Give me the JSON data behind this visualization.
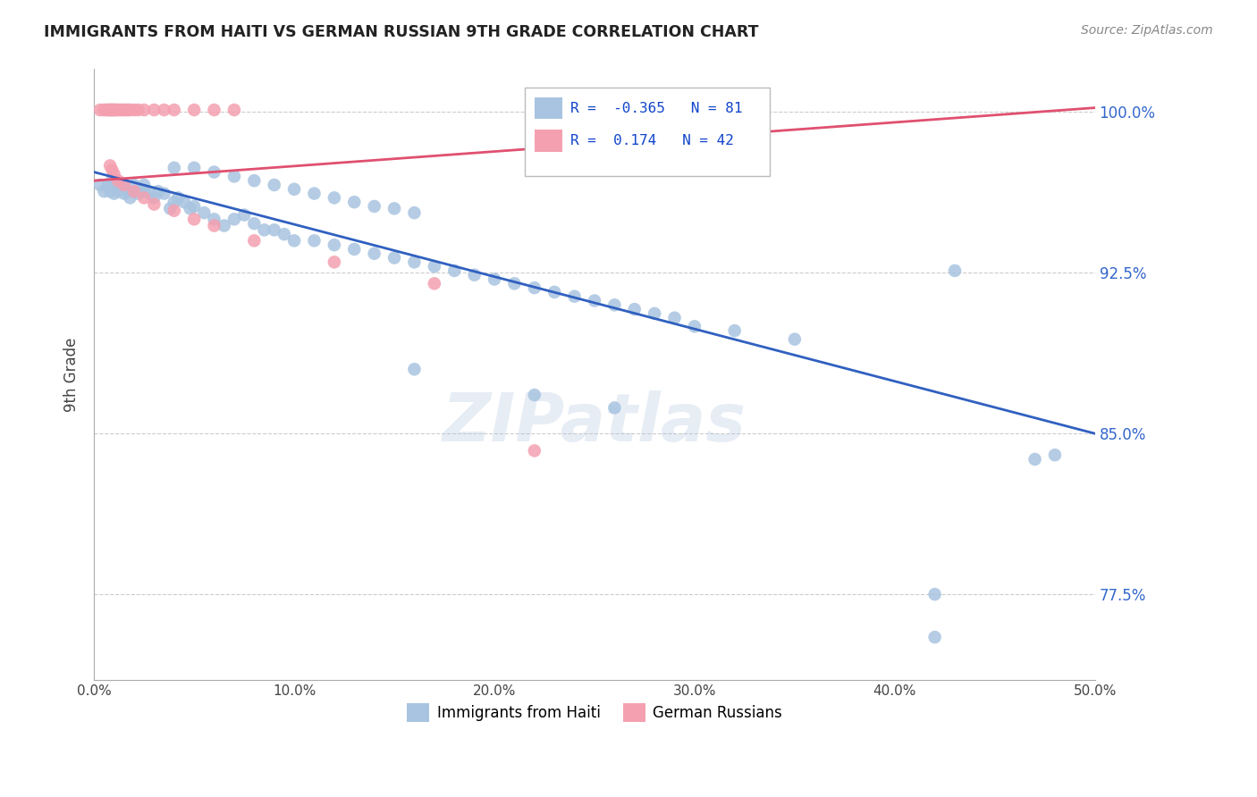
{
  "title": "IMMIGRANTS FROM HAITI VS GERMAN RUSSIAN 9TH GRADE CORRELATION CHART",
  "source": "Source: ZipAtlas.com",
  "xlabel_blue": "Immigrants from Haiti",
  "xlabel_pink": "German Russians",
  "ylabel": "9th Grade",
  "R_blue": -0.365,
  "N_blue": 81,
  "R_pink": 0.174,
  "N_pink": 42,
  "xlim": [
    0.0,
    0.5
  ],
  "ylim": [
    0.735,
    1.02
  ],
  "yticks": [
    0.775,
    0.85,
    0.925,
    1.0
  ],
  "ytick_labels": [
    "77.5%",
    "85.0%",
    "92.5%",
    "100.0%"
  ],
  "xticks": [
    0.0,
    0.1,
    0.2,
    0.3,
    0.4,
    0.5
  ],
  "xtick_labels": [
    "0.0%",
    "10.0%",
    "20.0%",
    "30.0%",
    "40.0%",
    "50.0%"
  ],
  "color_blue": "#a8c4e0",
  "color_pink": "#f4a0b0",
  "line_blue": "#3060c0",
  "line_pink": "#e05070",
  "watermark": "ZIPatlas",
  "blue_line_x": [
    0.0,
    0.5
  ],
  "blue_line_y": [
    0.972,
    0.85
  ],
  "pink_line_x": [
    0.0,
    0.5
  ],
  "pink_line_y": [
    0.968,
    1.002
  ],
  "blue_points_x": [
    0.003,
    0.005,
    0.007,
    0.008,
    0.009,
    0.01,
    0.01,
    0.012,
    0.013,
    0.015,
    0.015,
    0.017,
    0.018,
    0.02,
    0.02,
    0.022,
    0.025,
    0.025,
    0.028,
    0.03,
    0.032,
    0.035,
    0.038,
    0.04,
    0.042,
    0.045,
    0.048,
    0.05,
    0.055,
    0.06,
    0.065,
    0.07,
    0.075,
    0.08,
    0.085,
    0.09,
    0.095,
    0.1,
    0.11,
    0.12,
    0.13,
    0.14,
    0.15,
    0.16,
    0.17,
    0.18,
    0.19,
    0.2,
    0.21,
    0.22,
    0.23,
    0.24,
    0.25,
    0.26,
    0.27,
    0.28,
    0.29,
    0.3,
    0.32,
    0.35,
    0.04,
    0.05,
    0.06,
    0.07,
    0.08,
    0.09,
    0.1,
    0.11,
    0.12,
    0.13,
    0.14,
    0.15,
    0.16,
    0.43,
    0.47,
    0.48,
    0.16,
    0.22,
    0.26,
    0.42,
    0.42
  ],
  "blue_points_y": [
    0.966,
    0.963,
    0.966,
    0.963,
    0.968,
    0.962,
    0.968,
    0.963,
    0.966,
    0.966,
    0.962,
    0.963,
    0.96,
    0.963,
    0.966,
    0.962,
    0.963,
    0.966,
    0.962,
    0.96,
    0.963,
    0.962,
    0.955,
    0.958,
    0.96,
    0.958,
    0.955,
    0.956,
    0.953,
    0.95,
    0.947,
    0.95,
    0.952,
    0.948,
    0.945,
    0.945,
    0.943,
    0.94,
    0.94,
    0.938,
    0.936,
    0.934,
    0.932,
    0.93,
    0.928,
    0.926,
    0.924,
    0.922,
    0.92,
    0.918,
    0.916,
    0.914,
    0.912,
    0.91,
    0.908,
    0.906,
    0.904,
    0.9,
    0.898,
    0.894,
    0.974,
    0.974,
    0.972,
    0.97,
    0.968,
    0.966,
    0.964,
    0.962,
    0.96,
    0.958,
    0.956,
    0.955,
    0.953,
    0.926,
    0.838,
    0.84,
    0.88,
    0.868,
    0.862,
    0.775,
    0.755
  ],
  "pink_points_x": [
    0.003,
    0.005,
    0.006,
    0.007,
    0.008,
    0.008,
    0.009,
    0.009,
    0.01,
    0.01,
    0.011,
    0.012,
    0.013,
    0.014,
    0.015,
    0.016,
    0.017,
    0.018,
    0.02,
    0.022,
    0.025,
    0.03,
    0.035,
    0.04,
    0.05,
    0.06,
    0.07,
    0.008,
    0.009,
    0.01,
    0.012,
    0.015,
    0.02,
    0.025,
    0.03,
    0.04,
    0.05,
    0.06,
    0.08,
    0.12,
    0.17,
    0.22
  ],
  "pink_points_y": [
    1.001,
    1.001,
    1.001,
    1.001,
    1.001,
    1.001,
    1.001,
    1.001,
    1.001,
    1.001,
    1.001,
    1.001,
    1.001,
    1.001,
    1.001,
    1.001,
    1.001,
    1.001,
    1.001,
    1.001,
    1.001,
    1.001,
    1.001,
    1.001,
    1.001,
    1.001,
    1.001,
    0.975,
    0.973,
    0.971,
    0.968,
    0.966,
    0.963,
    0.96,
    0.957,
    0.954,
    0.95,
    0.947,
    0.94,
    0.93,
    0.92,
    0.842
  ]
}
